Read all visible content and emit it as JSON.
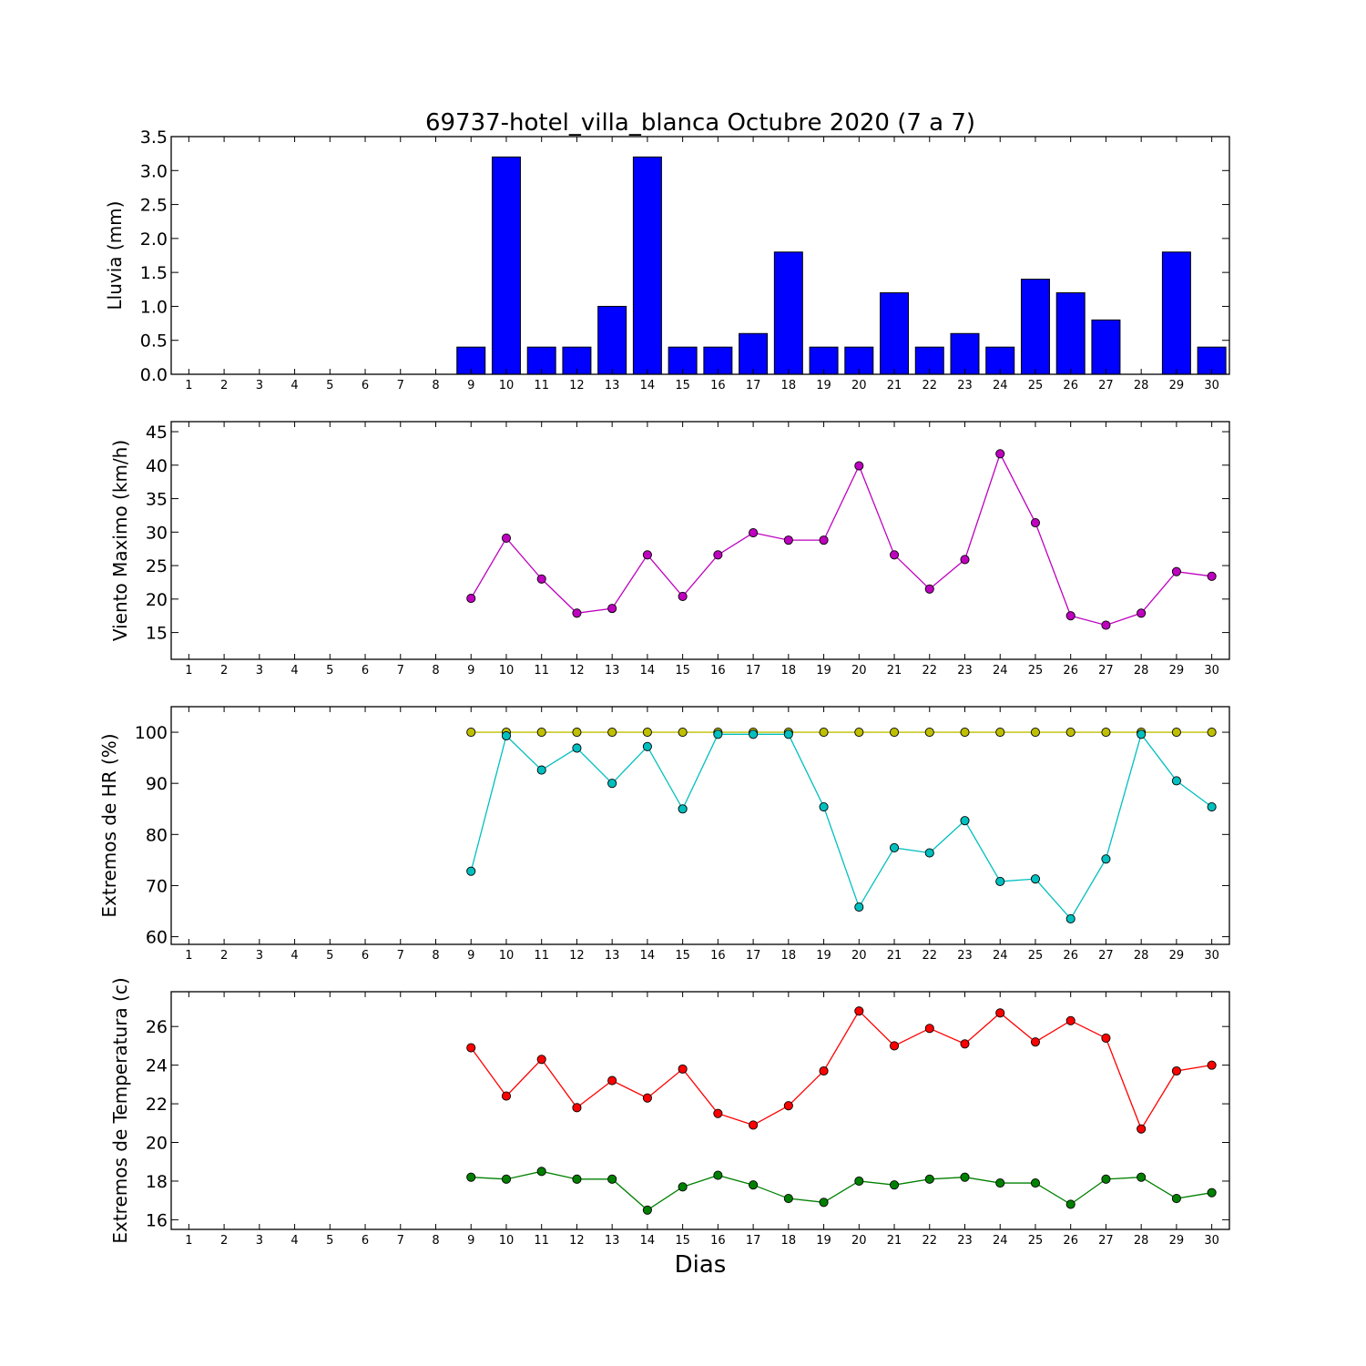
{
  "title": "69737-hotel_villa_blanca Octubre 2020  (7 a 7)",
  "xlabel": "Dias",
  "chart_data": [
    {
      "type": "bar",
      "ylabel": "Lluvia (mm)",
      "ylim": [
        0,
        3.5
      ],
      "yticks": [
        "0.0",
        "0.5",
        "1.0",
        "1.5",
        "2.0",
        "2.5",
        "3.0",
        "3.5"
      ],
      "xlim": [
        0.5,
        30.5
      ],
      "categories": [
        1,
        2,
        3,
        4,
        5,
        6,
        7,
        8,
        9,
        10,
        11,
        12,
        13,
        14,
        15,
        16,
        17,
        18,
        19,
        20,
        21,
        22,
        23,
        24,
        25,
        26,
        27,
        28,
        29,
        30
      ],
      "series": [
        {
          "color": "#0000ff",
          "values": [
            null,
            null,
            null,
            null,
            null,
            null,
            null,
            null,
            0.4,
            3.2,
            0.4,
            0.4,
            1.0,
            3.2,
            0.4,
            0.4,
            0.6,
            1.8,
            0.4,
            0.4,
            1.2,
            0.4,
            0.6,
            0.4,
            1.4,
            1.2,
            0.8,
            0.0,
            1.8,
            0.4
          ]
        }
      ]
    },
    {
      "type": "line",
      "ylabel": "Viento Maximo (km/h)",
      "ylim": [
        11,
        46.5
      ],
      "yticks": [
        "15",
        "20",
        "25",
        "30",
        "35",
        "40",
        "45"
      ],
      "xlim": [
        0.5,
        30.5
      ],
      "categories": [
        1,
        2,
        3,
        4,
        5,
        6,
        7,
        8,
        9,
        10,
        11,
        12,
        13,
        14,
        15,
        16,
        17,
        18,
        19,
        20,
        21,
        22,
        23,
        24,
        25,
        26,
        27,
        28,
        29,
        30
      ],
      "series": [
        {
          "color": "#bf00bf",
          "values": [
            null,
            null,
            null,
            null,
            null,
            null,
            null,
            null,
            20.1,
            29.1,
            23.0,
            17.9,
            18.6,
            26.6,
            20.4,
            26.6,
            29.9,
            28.8,
            28.8,
            39.9,
            26.6,
            21.5,
            25.9,
            41.7,
            31.4,
            17.5,
            16.1,
            17.9,
            24.1,
            23.4
          ]
        }
      ]
    },
    {
      "type": "line",
      "ylabel": "Extremos de HR (%)",
      "ylim": [
        58.5,
        105
      ],
      "yticks": [
        "60",
        "70",
        "80",
        "90",
        "100"
      ],
      "xlim": [
        0.5,
        30.5
      ],
      "categories": [
        1,
        2,
        3,
        4,
        5,
        6,
        7,
        8,
        9,
        10,
        11,
        12,
        13,
        14,
        15,
        16,
        17,
        18,
        19,
        20,
        21,
        22,
        23,
        24,
        25,
        26,
        27,
        28,
        29,
        30
      ],
      "series": [
        {
          "color": "#bfbf00",
          "values": [
            null,
            null,
            null,
            null,
            null,
            null,
            null,
            null,
            100,
            100,
            100,
            100,
            100,
            100,
            100,
            100,
            100,
            100,
            100,
            100,
            100,
            100,
            100,
            100,
            100,
            100,
            100,
            100,
            100,
            100
          ]
        },
        {
          "color": "#00bfbf",
          "values": [
            null,
            null,
            null,
            null,
            null,
            null,
            null,
            null,
            72.8,
            99.3,
            92.6,
            96.9,
            90.0,
            97.2,
            85.0,
            99.6,
            99.6,
            99.6,
            85.4,
            65.8,
            77.4,
            76.4,
            82.7,
            70.8,
            71.3,
            63.5,
            75.2,
            99.6,
            90.5,
            85.4
          ]
        }
      ]
    },
    {
      "type": "line",
      "ylabel": "Extremos de Temperatura (c)",
      "ylim": [
        15.5,
        27.8
      ],
      "yticks": [
        "16",
        "18",
        "20",
        "22",
        "24",
        "26"
      ],
      "xlim": [
        0.5,
        30.5
      ],
      "categories": [
        1,
        2,
        3,
        4,
        5,
        6,
        7,
        8,
        9,
        10,
        11,
        12,
        13,
        14,
        15,
        16,
        17,
        18,
        19,
        20,
        21,
        22,
        23,
        24,
        25,
        26,
        27,
        28,
        29,
        30
      ],
      "series": [
        {
          "color": "#ff0000",
          "values": [
            null,
            null,
            null,
            null,
            null,
            null,
            null,
            null,
            24.9,
            22.4,
            24.3,
            21.8,
            23.2,
            22.3,
            23.8,
            21.5,
            20.9,
            21.9,
            23.7,
            26.8,
            25.0,
            25.9,
            25.1,
            26.7,
            25.2,
            26.3,
            25.4,
            20.7,
            23.7,
            24.0
          ]
        },
        {
          "color": "#008000",
          "values": [
            null,
            null,
            null,
            null,
            null,
            null,
            null,
            null,
            18.2,
            18.1,
            18.5,
            18.1,
            18.1,
            16.5,
            17.7,
            18.3,
            17.8,
            17.1,
            16.9,
            18.0,
            17.8,
            18.1,
            18.2,
            17.9,
            17.9,
            16.8,
            18.1,
            18.2,
            17.1,
            17.4
          ]
        }
      ]
    }
  ]
}
